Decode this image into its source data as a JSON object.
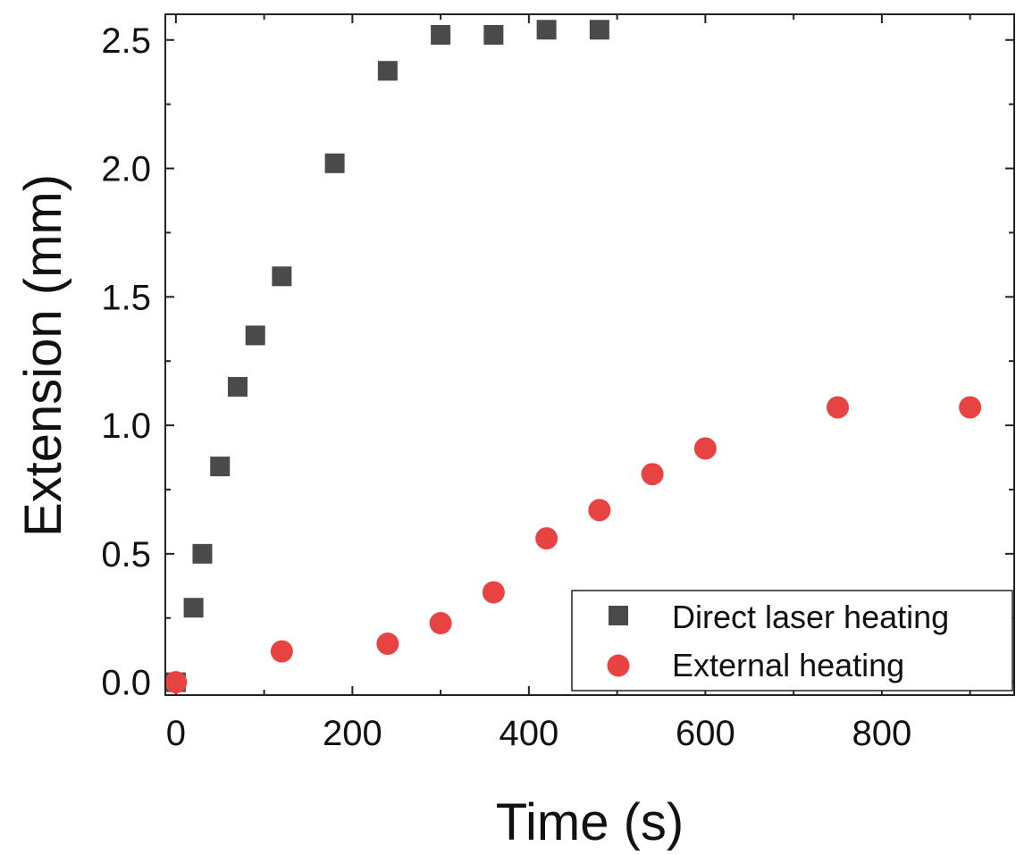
{
  "chart_data": {
    "type": "scatter",
    "title": "",
    "xlabel": "Time (s)",
    "ylabel": "Extension (mm)",
    "xlim": [
      -12,
      950
    ],
    "ylim": [
      -0.05,
      2.6
    ],
    "x_ticks": [
      0,
      200,
      400,
      600,
      800
    ],
    "x_tick_labels": [
      "0",
      "200",
      "400",
      "600",
      "800"
    ],
    "y_ticks": [
      0.0,
      0.5,
      1.0,
      1.5,
      2.0,
      2.5
    ],
    "y_tick_labels": [
      "0.0",
      "0.5",
      "1.0",
      "1.5",
      "2.0",
      "2.5"
    ],
    "grid": false,
    "legend_position": "bottom-right",
    "series": [
      {
        "name": "Direct laser heating",
        "marker": "square",
        "color": "#4a4a4a",
        "x": [
          0,
          20,
          30,
          50,
          70,
          90,
          120,
          180,
          240,
          300,
          360,
          420,
          480
        ],
        "y": [
          0.0,
          0.29,
          0.5,
          0.84,
          1.15,
          1.35,
          1.58,
          2.02,
          2.38,
          2.52,
          2.52,
          2.54,
          2.54
        ]
      },
      {
        "name": "External heating",
        "marker": "circle",
        "color": "#e84343",
        "x": [
          0,
          120,
          240,
          300,
          360,
          420,
          480,
          540,
          600,
          750,
          900
        ],
        "y": [
          0.0,
          0.12,
          0.15,
          0.23,
          0.35,
          0.56,
          0.67,
          0.81,
          0.91,
          1.07,
          1.07
        ]
      }
    ]
  }
}
